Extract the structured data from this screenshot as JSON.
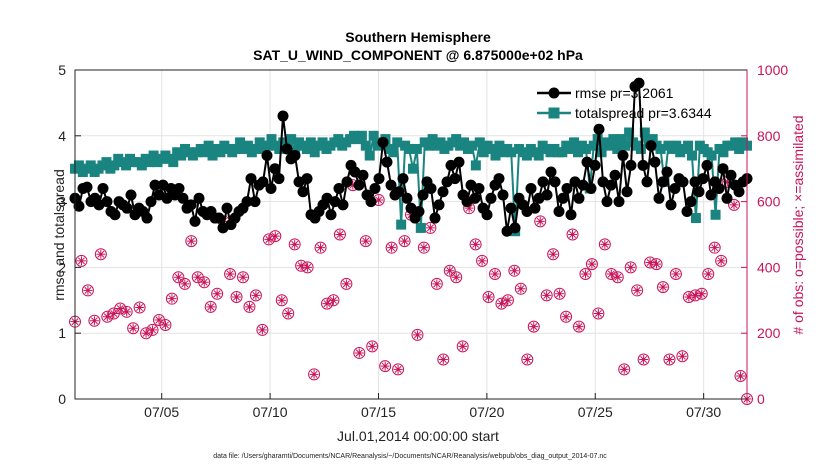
{
  "chart_data": {
    "type": "line",
    "title": "Southern Hemisphere",
    "subtitle": "SAT_U_WIND_COMPONENT @ 6.875000e+02 hPa",
    "xlabel": "Jul.01,2014 00:00:00 start",
    "ylabel": "rmse and totalspread",
    "y2label": "# of obs: o=possible; ×=assimilated",
    "footnote": "data file: /Users/gharamti/Documents/NCAR/Reanalysis/~/Documents/NCAR/Reanalysis/webpub/obs_diag_output_2014-07.nc",
    "xlim": [
      1,
      32
    ],
    "ylim": [
      0,
      5
    ],
    "y2lim": [
      0,
      1000
    ],
    "xticks": [
      5,
      10,
      15,
      20,
      25,
      30
    ],
    "xtick_labels": [
      "07/05",
      "07/10",
      "07/15",
      "07/20",
      "07/25",
      "07/30"
    ],
    "yticks": [
      "0",
      "1",
      "2",
      "3",
      "4",
      "5"
    ],
    "y2ticks": [
      "0",
      "200",
      "400",
      "600",
      "800",
      "1000"
    ],
    "legend_position": "top-right",
    "series": [
      {
        "name": "rmse",
        "legend": "rmse pr=3.2061",
        "color": "#000000",
        "values": [
          3.05,
          2.93,
          3.2,
          3.22,
          3.0,
          3.05,
          2.95,
          3.2,
          3.0,
          2.85,
          2.8,
          3.0,
          2.95,
          2.9,
          3.1,
          2.8,
          2.9,
          2.85,
          2.75,
          3.0,
          3.25,
          3.1,
          3.25,
          3.05,
          3.2,
          3.1,
          3.2,
          3.05,
          2.9,
          2.95,
          2.7,
          3.05,
          2.85,
          2.8,
          2.85,
          2.75,
          2.75,
          2.6,
          2.9,
          2.65,
          2.75,
          2.85,
          2.9,
          3.0,
          3.35,
          3.0,
          3.25,
          3.3,
          3.7,
          3.2,
          3.5,
          3.35,
          4.3,
          3.8,
          3.65,
          3.7,
          3.3,
          3.15,
          3.35,
          2.8,
          2.75,
          2.85,
          2.95,
          3.05,
          2.8,
          3.0,
          3.2,
          2.95,
          3.3,
          3.55,
          3.45,
          3.25,
          3.4,
          3.1,
          3.0,
          3.2,
          3.35,
          3.9,
          3.6,
          3.25,
          3.1,
          3.15,
          3.35,
          3.05,
          2.9,
          2.75,
          2.85,
          3.1,
          3.3,
          3.2,
          2.75,
          2.95,
          3.15,
          3.3,
          3.55,
          3.35,
          3.6,
          3.1,
          3.0,
          3.25,
          3.05,
          3.2,
          2.9,
          2.8,
          3.05,
          3.25,
          3.35,
          3.1,
          2.55,
          2.9,
          2.6,
          3.05,
          2.95,
          2.85,
          3.2,
          2.9,
          3.05,
          3.3,
          3.1,
          3.45,
          3.3,
          2.85,
          3.05,
          3.2,
          2.8,
          3.3,
          3.05,
          3.25,
          3.6,
          3.2,
          3.55,
          4.1,
          3.3,
          3.0,
          3.25,
          3.4,
          3.0,
          3.7,
          3.15,
          3.55,
          4.75,
          4.8,
          3.55,
          3.3,
          3.85,
          3.6,
          3.05,
          3.3,
          3.45,
          2.95,
          3.2,
          3.35,
          3.3,
          2.85,
          3.0,
          3.3,
          3.15,
          3.35,
          3.55,
          3.1,
          3.3,
          3.2,
          3.5,
          3.05,
          3.4,
          3.25,
          3.15,
          3.3,
          3.35
        ]
      },
      {
        "name": "totalspread",
        "legend": "totalspread pr=3.6344",
        "color": "#1a8480",
        "values": [
          3.5,
          3.55,
          3.45,
          3.5,
          3.55,
          3.45,
          3.5,
          3.55,
          3.6,
          3.5,
          3.55,
          3.65,
          3.6,
          3.55,
          3.65,
          3.6,
          3.6,
          3.55,
          3.65,
          3.6,
          3.7,
          3.6,
          3.65,
          3.7,
          3.65,
          3.6,
          3.75,
          3.7,
          3.8,
          3.75,
          3.7,
          3.75,
          3.8,
          3.75,
          3.85,
          3.7,
          3.8,
          3.75,
          3.85,
          3.8,
          3.75,
          3.8,
          3.9,
          3.8,
          3.85,
          3.75,
          3.8,
          3.9,
          3.8,
          3.85,
          3.95,
          3.85,
          3.8,
          3.9,
          3.85,
          3.95,
          3.75,
          3.9,
          3.85,
          3.8,
          3.9,
          3.75,
          3.85,
          3.9,
          3.8,
          3.85,
          3.9,
          3.95,
          3.85,
          3.9,
          3.95,
          4.0,
          3.95,
          4.0,
          3.85,
          3.7,
          4.0,
          3.85,
          3.9,
          3.95,
          3.8,
          3.75,
          3.9,
          2.65,
          3.85,
          3.8,
          3.5,
          3.8,
          2.6,
          3.9,
          3.85,
          3.95,
          3.85,
          3.9,
          3.8,
          3.85,
          3.9,
          3.95,
          3.85,
          3.9,
          3.8,
          3.85,
          3.55,
          3.9,
          3.75,
          3.85,
          3.8,
          3.7,
          3.85,
          3.75,
          3.8,
          3.75,
          2.55,
          3.8,
          3.75,
          3.7,
          3.8,
          3.75,
          3.7,
          3.85,
          3.8,
          3.75,
          3.8,
          3.75,
          3.75,
          3.85,
          3.8,
          3.9,
          3.75,
          3.85,
          3.8,
          3.2,
          3.85,
          3.95,
          3.75,
          3.9,
          3.85,
          3.95,
          3.8,
          3.95,
          3.85,
          4.05,
          3.9,
          3.85,
          3.8,
          4.05,
          3.9,
          3.95,
          3.85,
          3.8,
          3.3,
          3.85,
          3.8,
          3.85,
          3.75,
          3.8,
          3.85,
          3.7,
          2.75,
          3.85,
          3.8,
          3.75,
          3.7,
          2.8,
          3.8,
          3.75,
          3.85,
          3.85,
          3.9,
          3.8,
          3.9,
          3.85
        ]
      },
      {
        "name": "possible",
        "legend": "possible",
        "color": "#c8145a",
        "axis": "right",
        "values": [
          235,
          420,
          330,
          238,
          440,
          250,
          260,
          275,
          265,
          215,
          278,
          200,
          210,
          240,
          225,
          305,
          370,
          350,
          480,
          370,
          355,
          280,
          320,
          540,
          380,
          310,
          370,
          280,
          315,
          210,
          485,
          495,
          300,
          260,
          470,
          405,
          400,
          75,
          460,
          290,
          300,
          500,
          350,
          650,
          140,
          480,
          160,
          605,
          100,
          460,
          90,
          480,
          560,
          195,
          460,
          520,
          350,
          120,
          390,
          370,
          160,
          580,
          470,
          420,
          310,
          380,
          290,
          300,
          390,
          335,
          120,
          220,
          540,
          315,
          440,
          320,
          250,
          500,
          220,
          380,
          410,
          260,
          470,
          380,
          370,
          90,
          400,
          330,
          120,
          415,
          410,
          340,
          120,
          380,
          130,
          310,
          315,
          320,
          380,
          460,
          420,
          660,
          590,
          70,
          0
        ]
      },
      {
        "name": "assimilated",
        "legend": "assimilated",
        "color": "#c8145a",
        "axis": "right",
        "values": [
          235,
          420,
          330,
          238,
          440,
          250,
          260,
          275,
          265,
          215,
          278,
          200,
          210,
          240,
          225,
          305,
          370,
          350,
          480,
          370,
          355,
          280,
          320,
          540,
          380,
          310,
          370,
          280,
          315,
          210,
          485,
          495,
          300,
          260,
          470,
          405,
          400,
          75,
          460,
          290,
          300,
          500,
          350,
          650,
          140,
          480,
          160,
          605,
          100,
          460,
          90,
          480,
          560,
          195,
          460,
          520,
          350,
          120,
          390,
          370,
          160,
          580,
          470,
          420,
          310,
          380,
          290,
          300,
          390,
          335,
          120,
          220,
          540,
          315,
          440,
          320,
          250,
          500,
          220,
          380,
          410,
          260,
          470,
          380,
          370,
          90,
          400,
          330,
          120,
          415,
          410,
          340,
          120,
          380,
          130,
          310,
          315,
          320,
          380,
          460,
          420,
          660,
          590,
          70,
          0
        ]
      }
    ]
  }
}
